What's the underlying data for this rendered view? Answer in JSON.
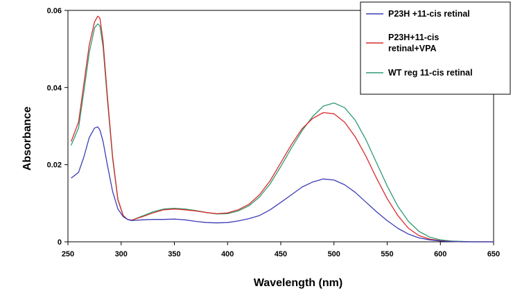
{
  "chart_data": {
    "type": "line",
    "title": "",
    "xlabel": "Wavelength (nm)",
    "ylabel": "Absorbance",
    "xlim": [
      250,
      650
    ],
    "ylim": [
      0,
      0.06
    ],
    "xticks": [
      250,
      300,
      350,
      400,
      450,
      500,
      550,
      600,
      650
    ],
    "yticks": [
      0,
      0.02,
      0.04,
      0.06
    ],
    "xtick_labels": [
      "250",
      "300",
      "350",
      "400",
      "450",
      "500",
      "550",
      "600",
      "650"
    ],
    "ytick_labels": [
      "0",
      "0.02",
      "0.04",
      "0.06"
    ],
    "grid": false,
    "legend_position": "top-right",
    "x": [
      253,
      260,
      265,
      270,
      275,
      278,
      280,
      283,
      287,
      292,
      297,
      302,
      306,
      310,
      320,
      330,
      340,
      350,
      360,
      370,
      380,
      390,
      400,
      410,
      420,
      430,
      440,
      450,
      460,
      470,
      480,
      490,
      500,
      510,
      520,
      530,
      540,
      550,
      560,
      570,
      580,
      590,
      600,
      610,
      620,
      630,
      640,
      650
    ],
    "series": [
      {
        "name": "P23H +11-cis retinal",
        "color": "#3b3bb8",
        "values": [
          0.0165,
          0.018,
          0.022,
          0.027,
          0.0295,
          0.0298,
          0.029,
          0.026,
          0.02,
          0.013,
          0.0085,
          0.0065,
          0.0058,
          0.0055,
          0.0057,
          0.0058,
          0.0058,
          0.0059,
          0.0057,
          0.0053,
          0.005,
          0.0049,
          0.005,
          0.0054,
          0.006,
          0.0068,
          0.0083,
          0.0102,
          0.0122,
          0.0142,
          0.0155,
          0.0163,
          0.016,
          0.0148,
          0.0128,
          0.0103,
          0.0078,
          0.0055,
          0.0035,
          0.002,
          0.001,
          0.0005,
          0.0002,
          0.0001,
          0.0,
          0.0,
          0.0,
          0.0
        ]
      },
      {
        "name": "P23H+11-cis retinal+VPA",
        "color": "#d92a2a",
        "values": [
          0.026,
          0.031,
          0.041,
          0.051,
          0.057,
          0.0585,
          0.058,
          0.052,
          0.038,
          0.022,
          0.011,
          0.0068,
          0.0058,
          0.0056,
          0.0065,
          0.0075,
          0.0083,
          0.0085,
          0.0083,
          0.008,
          0.0076,
          0.0073,
          0.0075,
          0.0083,
          0.0097,
          0.0122,
          0.0158,
          0.0205,
          0.0252,
          0.0293,
          0.032,
          0.0335,
          0.0332,
          0.031,
          0.0272,
          0.0222,
          0.0165,
          0.0112,
          0.0068,
          0.0035,
          0.0016,
          0.0007,
          0.0003,
          0.0001,
          0.0,
          0.0,
          0.0,
          0.0
        ]
      },
      {
        "name": "WT reg 11-cis retinal",
        "color": "#2e9a72",
        "values": [
          0.025,
          0.0295,
          0.039,
          0.049,
          0.0555,
          0.0565,
          0.056,
          0.0505,
          0.037,
          0.0215,
          0.0108,
          0.0067,
          0.0058,
          0.0056,
          0.0067,
          0.0078,
          0.0085,
          0.0087,
          0.0085,
          0.0081,
          0.0076,
          0.0072,
          0.0073,
          0.008,
          0.0093,
          0.0116,
          0.015,
          0.0195,
          0.0243,
          0.0288,
          0.0325,
          0.0352,
          0.036,
          0.0348,
          0.0315,
          0.0265,
          0.0205,
          0.0145,
          0.0092,
          0.0053,
          0.0027,
          0.0012,
          0.0005,
          0.0002,
          0.0001,
          0.0,
          0.0,
          0.0
        ]
      }
    ]
  }
}
